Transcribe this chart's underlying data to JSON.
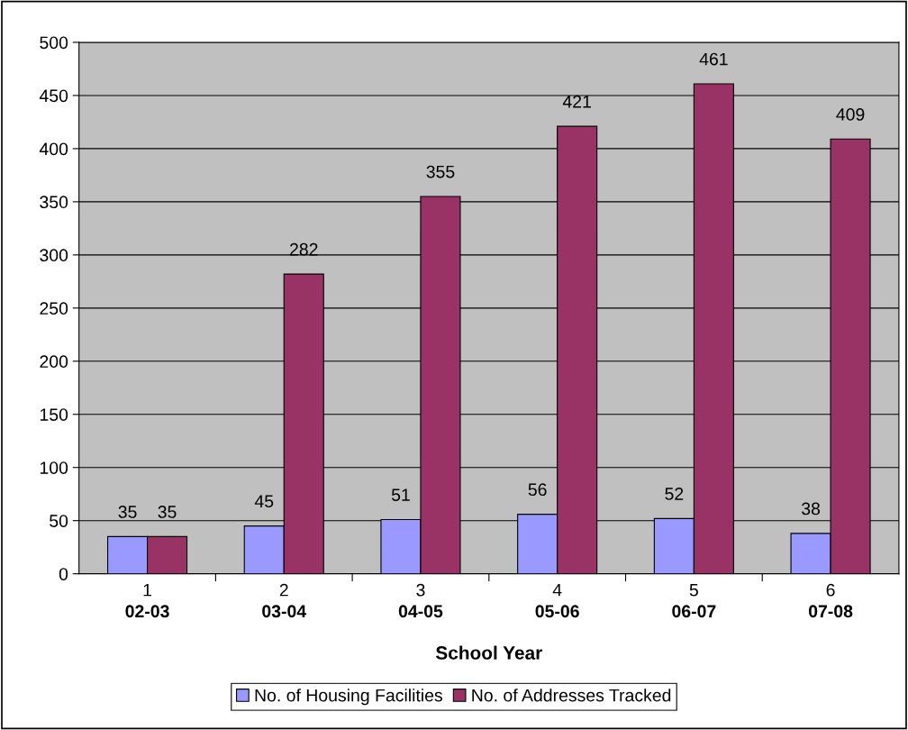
{
  "chart_data": {
    "type": "bar",
    "xlabel": "School Year",
    "categories": [
      "1\n02-03",
      "2\n03-04",
      "3\n04-05",
      "4\n05-06",
      "5\n06-07",
      "6\n07-08"
    ],
    "series": [
      {
        "name": "No. of Housing Facilities",
        "color": "#9999ff",
        "values": [
          35,
          45,
          51,
          56,
          52,
          38
        ]
      },
      {
        "name": "No. of Addresses Tracked",
        "color": "#993366",
        "values": [
          35,
          282,
          355,
          421,
          461,
          409
        ]
      }
    ],
    "ylim": [
      0,
      500
    ],
    "yticks": [
      0,
      50,
      100,
      150,
      200,
      250,
      300,
      350,
      400,
      450,
      500
    ],
    "grid": "y",
    "legend": "bottom",
    "data_labels": true
  }
}
